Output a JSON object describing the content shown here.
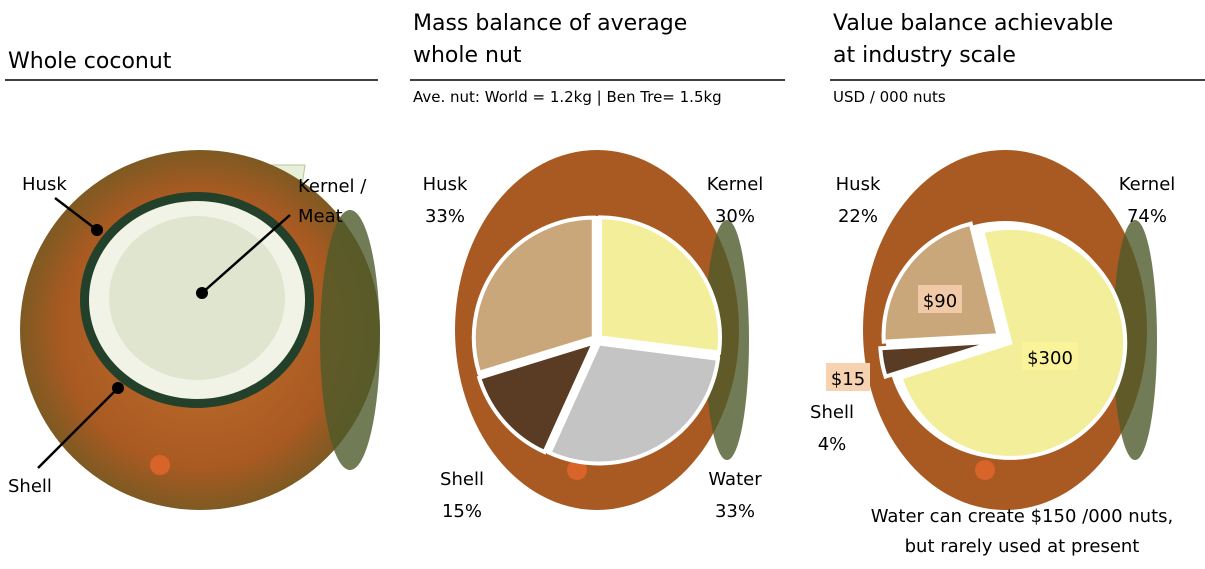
{
  "whole_coconut": {
    "title": "Whole coconut",
    "labels": {
      "husk": "Husk",
      "kernel": [
        "Kernel /",
        "Meat"
      ],
      "shell": "Shell"
    }
  },
  "chart_data": [
    {
      "type": "pie",
      "title": [
        "Mass balance of average",
        "whole nut"
      ],
      "subtitle": "Ave. nut: World = 1.2kg | Ben Tre= 1.5kg",
      "categories": [
        "Kernel",
        "Water",
        "Shell",
        "Husk"
      ],
      "values": [
        30,
        33,
        15,
        33
      ],
      "value_labels": [
        "30%",
        "33%",
        "15%",
        "33%"
      ],
      "colors": [
        "#f2ee9a",
        "#c4c4c4",
        "#5a3b24",
        "#c9a77a"
      ]
    },
    {
      "type": "pie",
      "title": [
        "Value balance achievable",
        "at industry scale"
      ],
      "subtitle": "USD / 000 nuts",
      "categories": [
        "Kernel",
        "Shell",
        "Husk"
      ],
      "values": [
        74,
        4,
        22
      ],
      "value_labels": [
        "74%",
        "4%",
        "22%"
      ],
      "amount_labels": [
        "$300",
        "$15",
        "$90"
      ],
      "colors": [
        "#f2ee9a",
        "#5a3b24",
        "#c9a77a"
      ],
      "annotation": [
        "Water can create $150 /000 nuts,",
        "but rarely used at present"
      ]
    }
  ]
}
